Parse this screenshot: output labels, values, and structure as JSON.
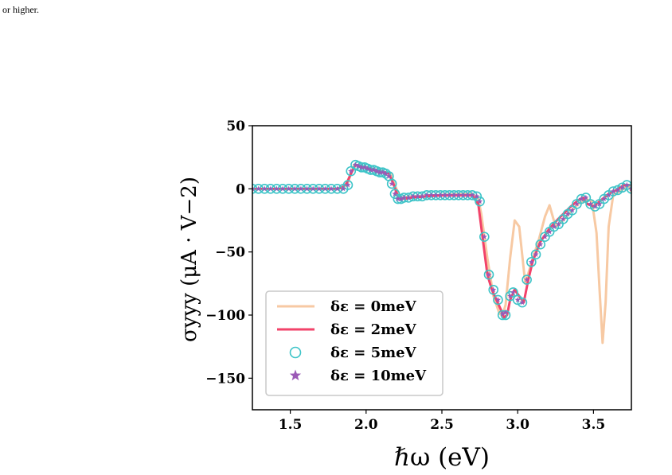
{
  "page_text": "or higher.",
  "chart_data": {
    "type": "line",
    "xlabel": "ℏω (eV)",
    "ylabel": "σyyy (μA · V−2)",
    "xlim": [
      1.25,
      3.75
    ],
    "ylim": [
      -175,
      50
    ],
    "xticks": [
      1.5,
      2.0,
      2.5,
      3.0,
      3.5
    ],
    "xtick_labels": [
      "1.5",
      "2.0",
      "2.5",
      "3.0",
      "3.5"
    ],
    "yticks": [
      50,
      0,
      -50,
      -100,
      -150
    ],
    "ytick_labels": [
      "50",
      "0",
      "−50",
      "−100",
      "−150"
    ],
    "grid": false,
    "legend_position": "lower-left",
    "series": [
      {
        "name": "δε = 0meV",
        "style": "line",
        "color": "#f7c9a3",
        "x": [
          1.25,
          1.8,
          1.85,
          1.88,
          1.92,
          2.0,
          2.1,
          2.16,
          2.2,
          2.23,
          2.3,
          2.5,
          2.7,
          2.74,
          2.76,
          2.8,
          2.84,
          2.88,
          2.9,
          2.92,
          2.95,
          2.98,
          3.01,
          3.05,
          3.1,
          3.14,
          3.18,
          3.21,
          3.25,
          3.3,
          3.35,
          3.4,
          3.45,
          3.49,
          3.52,
          3.54,
          3.56,
          3.58,
          3.6,
          3.63,
          3.66,
          3.7,
          3.73,
          3.75
        ],
        "y": [
          0,
          0,
          1,
          5,
          19,
          17,
          14,
          12,
          0,
          -7,
          -6,
          -5,
          -4,
          -8,
          -20,
          -55,
          -85,
          -99,
          -100,
          -92,
          -55,
          -25,
          -30,
          -75,
          -55,
          -40,
          -22,
          -13,
          -30,
          -25,
          -18,
          -12,
          -8,
          -10,
          -35,
          -80,
          -122,
          -90,
          -30,
          -5,
          -3,
          0,
          3,
          -2
        ]
      },
      {
        "name": "δε = 2meV",
        "style": "line",
        "color": "#f2436a",
        "x": [
          1.25,
          1.8,
          1.84,
          1.87,
          1.9,
          1.93,
          2.0,
          2.1,
          2.15,
          2.18,
          2.21,
          2.25,
          2.3,
          2.4,
          2.5,
          2.6,
          2.7,
          2.74,
          2.77,
          2.8,
          2.83,
          2.86,
          2.89,
          2.91,
          2.93,
          2.95,
          2.98,
          3.01,
          3.04,
          3.07,
          3.1,
          3.15,
          3.2,
          3.25,
          3.3,
          3.35,
          3.4,
          3.43,
          3.46,
          3.5,
          3.55,
          3.6,
          3.65,
          3.7,
          3.75
        ],
        "y": [
          0,
          0,
          1,
          4,
          12,
          19,
          17,
          14,
          12,
          4,
          -6,
          -8,
          -7,
          -6,
          -5,
          -5,
          -5,
          -12,
          -40,
          -68,
          -80,
          -88,
          -96,
          -102,
          -100,
          -88,
          -80,
          -85,
          -90,
          -72,
          -57,
          -42,
          -33,
          -26,
          -20,
          -14,
          -9,
          -7,
          -12,
          -14,
          -9,
          -4,
          -1,
          3,
          3
        ]
      },
      {
        "name": "δε = 5meV",
        "style": "marker",
        "marker": "circle",
        "color": "#3ec4c8",
        "x": [
          1.25,
          1.29,
          1.33,
          1.37,
          1.41,
          1.45,
          1.49,
          1.53,
          1.57,
          1.61,
          1.65,
          1.69,
          1.73,
          1.77,
          1.81,
          1.85,
          1.88,
          1.9,
          1.93,
          1.95,
          1.97,
          1.99,
          2.01,
          2.03,
          2.05,
          2.07,
          2.09,
          2.11,
          2.13,
          2.15,
          2.17,
          2.19,
          2.21,
          2.23,
          2.25,
          2.28,
          2.31,
          2.34,
          2.37,
          2.4,
          2.43,
          2.46,
          2.49,
          2.52,
          2.55,
          2.58,
          2.61,
          2.64,
          2.67,
          2.7,
          2.73,
          2.75,
          2.78,
          2.81,
          2.84,
          2.87,
          2.9,
          2.92,
          2.95,
          2.97,
          3.0,
          3.03,
          3.06,
          3.09,
          3.12,
          3.15,
          3.18,
          3.21,
          3.24,
          3.27,
          3.3,
          3.33,
          3.36,
          3.39,
          3.42,
          3.45,
          3.48,
          3.51,
          3.54,
          3.57,
          3.6,
          3.63,
          3.66,
          3.69,
          3.72,
          3.75
        ],
        "y": [
          0,
          0,
          0,
          0,
          0,
          0,
          0,
          0,
          0,
          0,
          0,
          0,
          0,
          0,
          0,
          0,
          3,
          14,
          19,
          18,
          17,
          17,
          16,
          15,
          15,
          14,
          13,
          13,
          12,
          10,
          4,
          -4,
          -8,
          -8,
          -7,
          -7,
          -6,
          -6,
          -6,
          -5,
          -5,
          -5,
          -5,
          -5,
          -5,
          -5,
          -5,
          -5,
          -5,
          -5,
          -6,
          -10,
          -38,
          -68,
          -80,
          -88,
          -100,
          -100,
          -85,
          -82,
          -88,
          -90,
          -72,
          -58,
          -52,
          -44,
          -38,
          -34,
          -30,
          -28,
          -24,
          -20,
          -17,
          -12,
          -8,
          -7,
          -12,
          -14,
          -12,
          -8,
          -5,
          -2,
          -1,
          1,
          3,
          0
        ]
      },
      {
        "name": "δε = 10meV",
        "style": "marker",
        "marker": "star",
        "color": "#9b59b6",
        "x": [
          1.25,
          1.29,
          1.33,
          1.37,
          1.41,
          1.45,
          1.49,
          1.53,
          1.57,
          1.61,
          1.65,
          1.69,
          1.73,
          1.77,
          1.81,
          1.85,
          1.88,
          1.9,
          1.93,
          1.95,
          1.97,
          1.99,
          2.01,
          2.03,
          2.05,
          2.07,
          2.09,
          2.11,
          2.13,
          2.15,
          2.17,
          2.19,
          2.21,
          2.23,
          2.25,
          2.28,
          2.31,
          2.34,
          2.37,
          2.4,
          2.43,
          2.46,
          2.49,
          2.52,
          2.55,
          2.58,
          2.61,
          2.64,
          2.67,
          2.7,
          2.73,
          2.75,
          2.78,
          2.81,
          2.84,
          2.87,
          2.9,
          2.92,
          2.95,
          2.97,
          3.0,
          3.03,
          3.06,
          3.09,
          3.12,
          3.15,
          3.18,
          3.21,
          3.24,
          3.27,
          3.3,
          3.33,
          3.36,
          3.39,
          3.42,
          3.45,
          3.48,
          3.51,
          3.54,
          3.57,
          3.6,
          3.63,
          3.66,
          3.69,
          3.72,
          3.75
        ],
        "y": [
          0,
          0,
          0,
          0,
          0,
          0,
          0,
          0,
          0,
          0,
          0,
          0,
          0,
          0,
          0,
          0,
          3,
          14,
          19,
          18,
          17,
          17,
          16,
          15,
          15,
          14,
          13,
          13,
          12,
          10,
          4,
          -4,
          -8,
          -8,
          -7,
          -7,
          -6,
          -6,
          -6,
          -5,
          -5,
          -5,
          -5,
          -5,
          -5,
          -5,
          -5,
          -5,
          -5,
          -5,
          -6,
          -10,
          -38,
          -68,
          -80,
          -88,
          -99,
          -98,
          -85,
          -82,
          -88,
          -90,
          -72,
          -58,
          -52,
          -44,
          -38,
          -34,
          -30,
          -28,
          -24,
          -20,
          -17,
          -12,
          -8,
          -7,
          -12,
          -14,
          -12,
          -8,
          -5,
          -2,
          -1,
          1,
          3,
          0
        ]
      }
    ]
  }
}
